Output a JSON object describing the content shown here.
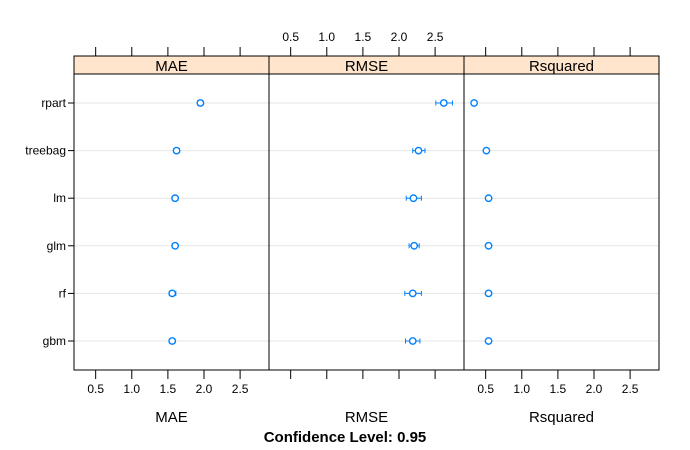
{
  "chart_data": {
    "type": "dotplot",
    "models": [
      "rpart",
      "treebag",
      "lm",
      "glm",
      "rf",
      "gbm"
    ],
    "panels": [
      {
        "name": "MAE",
        "xlabel": "MAE",
        "xlim": [
          0.2,
          2.9
        ],
        "ticks": [
          0.5,
          1.0,
          1.5,
          2.0,
          2.5
        ],
        "tick_labels": [
          "0.5",
          "1.0",
          "1.5",
          "2.0",
          "2.5"
        ],
        "tick_labels_position": "bottom",
        "points": [
          {
            "model": "rpart",
            "estimate": 1.95,
            "lower": 1.91,
            "upper": 1.99
          },
          {
            "model": "treebag",
            "estimate": 1.62,
            "lower": 1.58,
            "upper": 1.66
          },
          {
            "model": "lm",
            "estimate": 1.6,
            "lower": 1.56,
            "upper": 1.64
          },
          {
            "model": "glm",
            "estimate": 1.6,
            "lower": 1.56,
            "upper": 1.64
          },
          {
            "model": "rf",
            "estimate": 1.56,
            "lower": 1.52,
            "upper": 1.61
          },
          {
            "model": "gbm",
            "estimate": 1.56,
            "lower": 1.52,
            "upper": 1.6
          }
        ]
      },
      {
        "name": "RMSE",
        "xlabel": "RMSE",
        "xlim": [
          0.2,
          2.9
        ],
        "ticks": [
          0.5,
          1.0,
          1.5,
          2.0,
          2.5
        ],
        "tick_labels": [
          "0.5",
          "1.0",
          "1.5",
          "2.0",
          "2.5"
        ],
        "tick_labels_position": "top",
        "points": [
          {
            "model": "rpart",
            "estimate": 2.62,
            "lower": 2.51,
            "upper": 2.74
          },
          {
            "model": "treebag",
            "estimate": 2.27,
            "lower": 2.19,
            "upper": 2.36
          },
          {
            "model": "lm",
            "estimate": 2.2,
            "lower": 2.1,
            "upper": 2.31
          },
          {
            "model": "glm",
            "estimate": 2.21,
            "lower": 2.14,
            "upper": 2.28
          },
          {
            "model": "rf",
            "estimate": 2.19,
            "lower": 2.08,
            "upper": 2.31
          },
          {
            "model": "gbm",
            "estimate": 2.19,
            "lower": 2.09,
            "upper": 2.29
          }
        ]
      },
      {
        "name": "Rsquared",
        "xlabel": "Rsquared",
        "xlim": [
          0.2,
          2.9
        ],
        "ticks": [
          0.5,
          1.0,
          1.5,
          2.0,
          2.5
        ],
        "tick_labels": [
          "0.5",
          "1.0",
          "1.5",
          "2.0",
          "2.5"
        ],
        "tick_labels_position": "bottom",
        "points": [
          {
            "model": "rpart",
            "estimate": 0.34,
            "lower": 0.31,
            "upper": 0.37
          },
          {
            "model": "treebag",
            "estimate": 0.51,
            "lower": 0.49,
            "upper": 0.53
          },
          {
            "model": "lm",
            "estimate": 0.54,
            "lower": 0.52,
            "upper": 0.56
          },
          {
            "model": "glm",
            "estimate": 0.54,
            "lower": 0.52,
            "upper": 0.56
          },
          {
            "model": "rf",
            "estimate": 0.54,
            "lower": 0.51,
            "upper": 0.57
          },
          {
            "model": "gbm",
            "estimate": 0.54,
            "lower": 0.52,
            "upper": 0.56
          }
        ]
      }
    ],
    "footer": "Confidence Level: 0.95",
    "grid": true,
    "legend": "none",
    "colors": {
      "point": "#0080ff",
      "strip": "#ffe5cc",
      "grid": "#e6e6e6",
      "frame": "#000000"
    }
  }
}
